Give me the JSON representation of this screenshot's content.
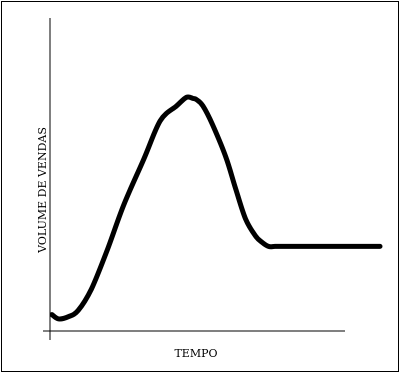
{
  "chart_data": {
    "type": "line",
    "title": "",
    "xlabel": "TEMPO",
    "ylabel": "VOLUME DE VENDAS",
    "grid": false,
    "legend": "none",
    "xlim": [
      0,
      100
    ],
    "ylim": [
      0,
      100
    ],
    "series": [
      {
        "color": "#000000",
        "x": [
          0,
          2,
          5,
          8,
          12,
          17,
          22,
          28,
          33,
          38,
          41,
          43,
          44,
          46,
          49,
          53,
          56,
          59,
          62,
          64,
          66,
          68,
          71,
          75,
          80,
          90,
          100
        ],
        "y": [
          3,
          1,
          2,
          5,
          15,
          34,
          55,
          76,
          94,
          101,
          105,
          104.5,
          104,
          101,
          92,
          77,
          62,
          48,
          40,
          37,
          35,
          35,
          35,
          35,
          35,
          35,
          35
        ]
      }
    ],
    "colors": {
      "line": "#000000",
      "axis": "#000000",
      "background": "#ffffff"
    }
  }
}
